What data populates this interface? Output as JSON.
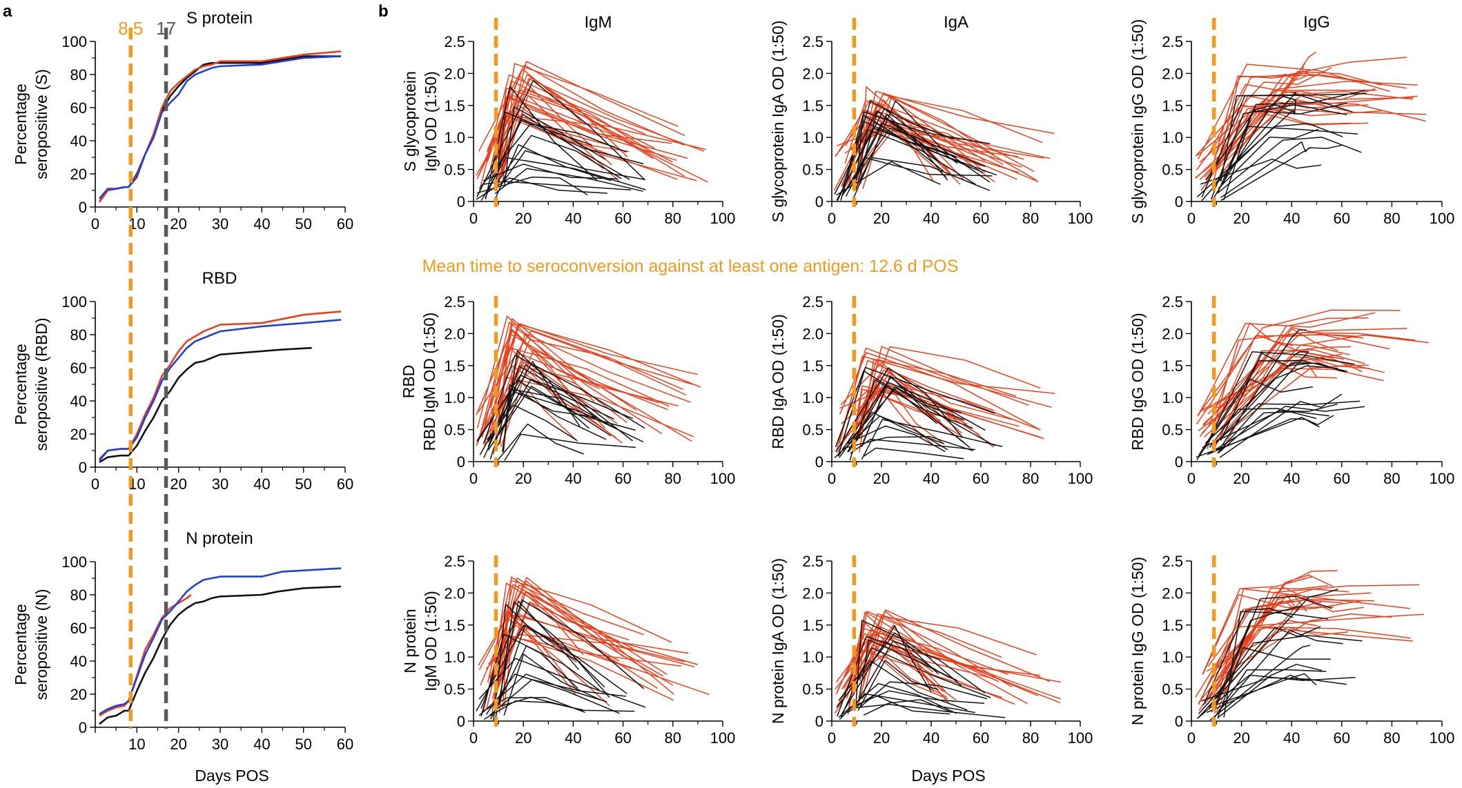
{
  "figure": {
    "panel_labels": [
      "a",
      "b"
    ],
    "x_label": "Days POS",
    "annotation": "Mean time to seroconversion against at least one antigen: 12.6 d POS",
    "colors": {
      "orange": "#f39a1e",
      "gray": "#5a5a5a",
      "red": "#e8401c",
      "blue": "#1f3fd6",
      "black": "#111111"
    }
  },
  "chart_data": [
    {
      "id": "a1",
      "type": "line",
      "title": "S protein",
      "ylabel": "Percentage seropositive (S)",
      "xlabel": "",
      "xlim": [
        0,
        60
      ],
      "ylim": [
        0,
        100
      ],
      "xticks": [
        0,
        10,
        20,
        30,
        40,
        50,
        60
      ],
      "yticks": [
        0,
        20,
        40,
        60,
        80,
        100
      ],
      "vlines": [
        {
          "x": 8.5,
          "label": "8.5",
          "color": "#f39a1e"
        },
        {
          "x": 17,
          "label": "17",
          "color": "#5a5a5a"
        }
      ],
      "series": [
        {
          "color": "#111111",
          "points": [
            [
              1,
              3
            ],
            [
              3,
              10
            ],
            [
              5,
              11
            ],
            [
              7,
              12
            ],
            [
              8,
              12
            ],
            [
              10,
              20
            ],
            [
              12,
              32
            ],
            [
              14,
              42
            ],
            [
              16,
              58
            ],
            [
              18,
              67
            ],
            [
              20,
              73
            ],
            [
              22,
              78
            ],
            [
              24,
              82
            ],
            [
              26,
              86
            ],
            [
              28,
              87
            ],
            [
              30,
              87
            ],
            [
              40,
              87
            ],
            [
              50,
              91
            ],
            [
              59,
              91
            ]
          ]
        },
        {
          "color": "#e8401c",
          "points": [
            [
              1,
              3
            ],
            [
              3,
              10
            ],
            [
              5,
              11
            ],
            [
              7,
              12
            ],
            [
              8,
              12
            ],
            [
              10,
              19
            ],
            [
              12,
              32
            ],
            [
              14,
              44
            ],
            [
              16,
              60
            ],
            [
              18,
              70
            ],
            [
              20,
              75
            ],
            [
              22,
              79
            ],
            [
              24,
              83
            ],
            [
              26,
              85
            ],
            [
              28,
              86
            ],
            [
              30,
              88
            ],
            [
              40,
              88
            ],
            [
              50,
              92
            ],
            [
              59,
              94
            ]
          ]
        },
        {
          "color": "#1f3fd6",
          "points": [
            [
              1,
              5
            ],
            [
              3,
              11
            ],
            [
              5,
              11
            ],
            [
              7,
              12
            ],
            [
              8,
              12
            ],
            [
              10,
              18
            ],
            [
              12,
              32
            ],
            [
              14,
              42
            ],
            [
              16,
              57
            ],
            [
              18,
              63
            ],
            [
              20,
              68
            ],
            [
              22,
              76
            ],
            [
              24,
              80
            ],
            [
              26,
              82
            ],
            [
              28,
              84
            ],
            [
              30,
              85
            ],
            [
              40,
              86
            ],
            [
              50,
              90
            ],
            [
              59,
              91
            ]
          ]
        }
      ]
    },
    {
      "id": "a2",
      "type": "line",
      "title": "RBD",
      "ylabel": "Percentage seropositive (RBD)",
      "xlabel": "",
      "xlim": [
        0,
        60
      ],
      "ylim": [
        0,
        100
      ],
      "xticks": [
        0,
        10,
        20,
        30,
        40,
        50,
        60
      ],
      "yticks": [
        0,
        20,
        40,
        60,
        80,
        100
      ],
      "vlines": [
        {
          "x": 8.5,
          "label": "",
          "color": "#f39a1e"
        },
        {
          "x": 17,
          "label": "",
          "color": "#5a5a5a"
        }
      ],
      "series": [
        {
          "color": "#111111",
          "points": [
            [
              1,
              3
            ],
            [
              3,
              6
            ],
            [
              6,
              7
            ],
            [
              8,
              7
            ],
            [
              10,
              13
            ],
            [
              12,
              22
            ],
            [
              14,
              30
            ],
            [
              16,
              40
            ],
            [
              18,
              46
            ],
            [
              20,
              54
            ],
            [
              22,
              59
            ],
            [
              24,
              63
            ],
            [
              26,
              64
            ],
            [
              28,
              66
            ],
            [
              30,
              68
            ],
            [
              40,
              70
            ],
            [
              45,
              71
            ],
            [
              52,
              72
            ]
          ]
        },
        {
          "color": "#e8401c",
          "points": [
            [
              1,
              5
            ],
            [
              3,
              10
            ],
            [
              6,
              11
            ],
            [
              8,
              11
            ],
            [
              10,
              20
            ],
            [
              12,
              32
            ],
            [
              14,
              42
            ],
            [
              16,
              55
            ],
            [
              18,
              62
            ],
            [
              20,
              70
            ],
            [
              22,
              76
            ],
            [
              24,
              79
            ],
            [
              26,
              82
            ],
            [
              28,
              84
            ],
            [
              30,
              86
            ],
            [
              40,
              87
            ],
            [
              50,
              92
            ],
            [
              59,
              94
            ]
          ]
        },
        {
          "color": "#1f3fd6",
          "points": [
            [
              1,
              4
            ],
            [
              3,
              10
            ],
            [
              6,
              11
            ],
            [
              8,
              11
            ],
            [
              10,
              18
            ],
            [
              12,
              30
            ],
            [
              14,
              40
            ],
            [
              16,
              52
            ],
            [
              18,
              60
            ],
            [
              20,
              66
            ],
            [
              22,
              72
            ],
            [
              24,
              76
            ],
            [
              26,
              78
            ],
            [
              28,
              80
            ],
            [
              30,
              82
            ],
            [
              40,
              85
            ],
            [
              50,
              87
            ],
            [
              59,
              89
            ]
          ]
        }
      ]
    },
    {
      "id": "a3",
      "type": "line",
      "title": "N protein",
      "ylabel": "Percentage seropositive (N)",
      "xlabel": "Days POS",
      "xlim": [
        0,
        60
      ],
      "ylim": [
        0,
        100
      ],
      "xticks": [
        10,
        20,
        30,
        40,
        50,
        60
      ],
      "yticks": [
        0,
        20,
        40,
        60,
        80,
        100
      ],
      "vlines": [
        {
          "x": 8.5,
          "label": "",
          "color": "#f39a1e"
        },
        {
          "x": 17,
          "label": "",
          "color": "#5a5a5a"
        }
      ],
      "series": [
        {
          "color": "#111111",
          "points": [
            [
              1,
              2
            ],
            [
              3,
              6
            ],
            [
              5,
              7
            ],
            [
              7,
              10
            ],
            [
              8,
              10
            ],
            [
              10,
              22
            ],
            [
              12,
              33
            ],
            [
              14,
              42
            ],
            [
              16,
              53
            ],
            [
              18,
              62
            ],
            [
              20,
              68
            ],
            [
              22,
              72
            ],
            [
              24,
              75
            ],
            [
              26,
              76
            ],
            [
              28,
              78
            ],
            [
              30,
              79
            ],
            [
              40,
              80
            ],
            [
              44,
              82
            ],
            [
              50,
              84
            ],
            [
              59,
              85
            ]
          ]
        },
        {
          "color": "#e8401c",
          "points": [
            [
              1,
              7
            ],
            [
              3,
              10
            ],
            [
              5,
              12
            ],
            [
              7,
              13
            ],
            [
              8,
              16
            ],
            [
              10,
              31
            ],
            [
              12,
              47
            ],
            [
              14,
              56
            ],
            [
              16,
              66
            ],
            [
              18,
              72
            ],
            [
              20,
              75
            ],
            [
              22,
              78
            ],
            [
              23,
              80
            ]
          ]
        },
        {
          "color": "#1f3fd6",
          "points": [
            [
              1,
              8
            ],
            [
              3,
              11
            ],
            [
              5,
              13
            ],
            [
              7,
              14
            ],
            [
              8,
              16
            ],
            [
              10,
              30
            ],
            [
              12,
              44
            ],
            [
              14,
              54
            ],
            [
              16,
              65
            ],
            [
              18,
              70
            ],
            [
              20,
              76
            ],
            [
              22,
              82
            ],
            [
              24,
              86
            ],
            [
              26,
              89
            ],
            [
              30,
              91
            ],
            [
              40,
              91
            ],
            [
              45,
              94
            ],
            [
              59,
              96
            ]
          ]
        }
      ]
    },
    {
      "id": "b11",
      "type": "line",
      "title": "IgM",
      "ylabel": "S glycoprotein IgM OD (1:50)",
      "xlabel": "",
      "xlim": [
        0,
        100
      ],
      "ylim": [
        0,
        2.5
      ],
      "xticks": [
        0,
        20,
        40,
        60,
        80,
        100
      ],
      "yticks": [
        0,
        0.5,
        1.0,
        1.5,
        2.0,
        2.5
      ],
      "vline": 9,
      "profile": "igm",
      "seed": 11
    },
    {
      "id": "b12",
      "type": "line",
      "title": "IgA",
      "ylabel": "S glycoprotein IgA OD (1:50)",
      "xlabel": "",
      "xlim": [
        0,
        100
      ],
      "ylim": [
        0,
        2.5
      ],
      "xticks": [
        0,
        20,
        40,
        60,
        80,
        100
      ],
      "yticks": [
        0,
        0.5,
        1.0,
        1.5,
        2.0,
        2.5
      ],
      "vline": 9,
      "profile": "iga",
      "seed": 12
    },
    {
      "id": "b13",
      "type": "line",
      "title": "IgG",
      "ylabel": "S glycoprotein IgG OD (1:50)",
      "xlabel": "",
      "xlim": [
        0,
        100
      ],
      "ylim": [
        0,
        2.5
      ],
      "xticks": [
        0,
        20,
        40,
        60,
        80,
        100
      ],
      "yticks": [
        0,
        0.5,
        1.0,
        1.5,
        2.0,
        2.5
      ],
      "vline": 9,
      "profile": "igg",
      "seed": 13
    },
    {
      "id": "b21",
      "type": "line",
      "title": "",
      "ylabel": "RBD IgM OD (1:50)",
      "ylabel2": "RBD",
      "xlabel": "",
      "xlim": [
        0,
        100
      ],
      "ylim": [
        0,
        2.5
      ],
      "xticks": [
        0,
        20,
        40,
        60,
        80,
        100
      ],
      "yticks": [
        0,
        0.5,
        1.0,
        1.5,
        2.0,
        2.5
      ],
      "vline": 9,
      "profile": "igm",
      "seed": 21
    },
    {
      "id": "b22",
      "type": "line",
      "title": "",
      "ylabel": "RBD IgA OD (1:50)",
      "xlabel": "",
      "xlim": [
        0,
        100
      ],
      "ylim": [
        0,
        2.5
      ],
      "xticks": [
        0,
        20,
        40,
        60,
        80,
        100
      ],
      "yticks": [
        0,
        0.5,
        1.0,
        1.5,
        2.0,
        2.5
      ],
      "vline": 9,
      "profile": "iga",
      "seed": 22
    },
    {
      "id": "b23",
      "type": "line",
      "title": "",
      "ylabel": "RBD IgG OD (1:50)",
      "xlabel": "",
      "xlim": [
        0,
        100
      ],
      "ylim": [
        0,
        2.5
      ],
      "xticks": [
        0,
        20,
        40,
        60,
        80,
        100
      ],
      "yticks": [
        0,
        0.5,
        1.0,
        1.5,
        2.0,
        2.5
      ],
      "vline": 9,
      "profile": "igg",
      "seed": 23
    },
    {
      "id": "b31",
      "type": "line",
      "title": "",
      "ylabel": "N protein IgM OD (1:50)",
      "xlabel": "",
      "xlim": [
        0,
        100
      ],
      "ylim": [
        0,
        2.5
      ],
      "xticks": [
        0,
        20,
        40,
        60,
        80,
        100
      ],
      "yticks": [
        0,
        0.5,
        1.0,
        1.5,
        2.0,
        2.5
      ],
      "vline": 9,
      "profile": "igm",
      "seed": 31
    },
    {
      "id": "b32",
      "type": "line",
      "title": "",
      "ylabel": "N protein IgA OD (1:50)",
      "xlabel": "Days POS",
      "xlim": [
        0,
        100
      ],
      "ylim": [
        0,
        2.5
      ],
      "xticks": [
        0,
        20,
        40,
        60,
        80,
        100
      ],
      "yticks": [
        0,
        0.5,
        1.0,
        1.5,
        2.0,
        2.5
      ],
      "vline": 9,
      "profile": "iga",
      "seed": 32
    },
    {
      "id": "b33",
      "type": "line",
      "title": "",
      "ylabel": "N protein IgG OD (1:50)",
      "xlabel": "",
      "xlim": [
        0,
        100
      ],
      "ylim": [
        0,
        2.5
      ],
      "xticks": [
        0,
        20,
        40,
        60,
        80,
        100
      ],
      "yticks": [
        0,
        0.5,
        1.0,
        1.5,
        2.0,
        2.5
      ],
      "vline": 9,
      "profile": "igg",
      "seed": 33
    }
  ]
}
